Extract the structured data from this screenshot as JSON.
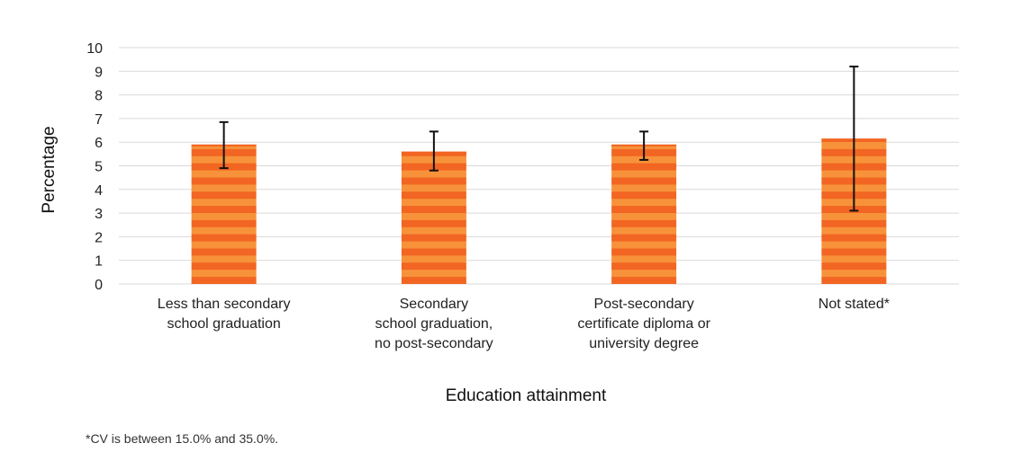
{
  "chart_data": {
    "type": "bar",
    "categories": [
      [
        "Less than secondary",
        "school graduation"
      ],
      [
        "Secondary",
        "school graduation,",
        "no post-secondary"
      ],
      [
        "Post-secondary",
        "certificate diploma or",
        "university degree"
      ],
      [
        "Not stated*"
      ]
    ],
    "values": [
      5.9,
      5.6,
      5.9,
      6.15
    ],
    "error_low": [
      4.9,
      4.8,
      5.25,
      3.1
    ],
    "error_high": [
      6.85,
      6.45,
      6.45,
      9.2
    ],
    "ylim": [
      0,
      10
    ],
    "yticks": [
      0,
      1,
      2,
      3,
      4,
      5,
      6,
      7,
      8,
      9,
      10
    ],
    "ylabel": "Percentage",
    "xlabel": "Education attainment",
    "grid": true,
    "colors": {
      "bar_stripe_a": "#f26522",
      "bar_stripe_b": "#f7923a",
      "error": "#111111",
      "grid": "#d9d9d9"
    }
  },
  "footnote": "*CV is between 15.0% and 35.0%."
}
